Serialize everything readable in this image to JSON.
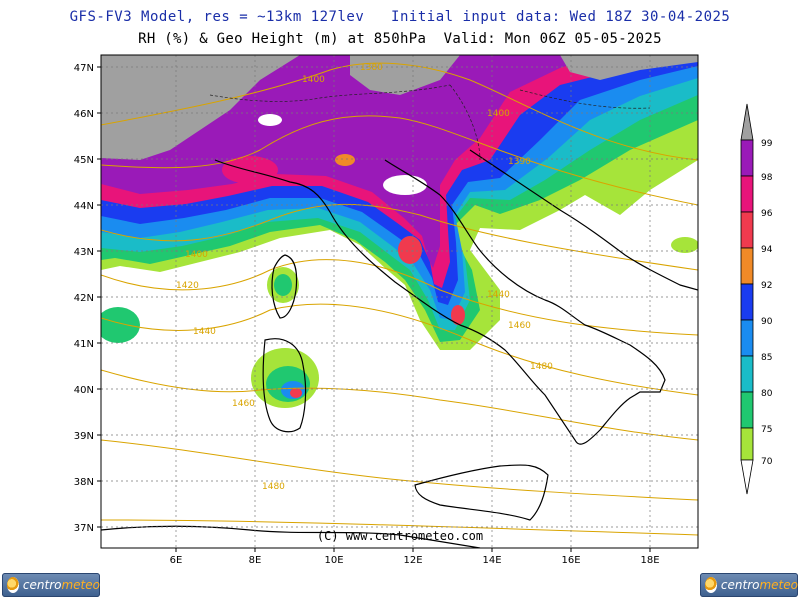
{
  "header": {
    "title_line1": "GFS-FV3 Model, res = ~13km 127lev   Initial input data: Wed 18Z 30-04-2025",
    "title_line2": "RH (%) & Geo Height (m) at 850hPa  Valid: Mon 06Z 05-05-2025"
  },
  "map": {
    "lat_labels": [
      "47N",
      "46N",
      "45N",
      "44N",
      "43N",
      "42N",
      "41N",
      "40N",
      "39N",
      "38N",
      "37N"
    ],
    "lon_labels": [
      "6E",
      "8E",
      "10E",
      "12E",
      "14E",
      "16E",
      "18E"
    ],
    "contour_labels": [
      "1400",
      "1380",
      "1400",
      "1390",
      "1400",
      "1420",
      "1440",
      "1440",
      "1460",
      "1460",
      "1480",
      "1480"
    ],
    "credit": "(C)  www.centrometeo.com",
    "colors": {
      "coastline": "#000000",
      "contour": "#d9a400",
      "grid": "#7a7a7a"
    }
  },
  "colorbar": {
    "levels": [
      "99",
      "98",
      "96",
      "94",
      "92",
      "90",
      "85",
      "80",
      "75",
      "70"
    ],
    "colors": [
      "#a0a0a0",
      "#9a1ab8",
      "#e8147a",
      "#f03a4e",
      "#f08a28",
      "#1a3cf0",
      "#1a8cf0",
      "#1abcc8",
      "#20c870",
      "#a6e43a"
    ]
  },
  "logos": {
    "left": {
      "text_main": "centro",
      "text_accent": "meteo"
    },
    "right": {
      "text_main": "centro",
      "text_accent": "meteo"
    }
  }
}
